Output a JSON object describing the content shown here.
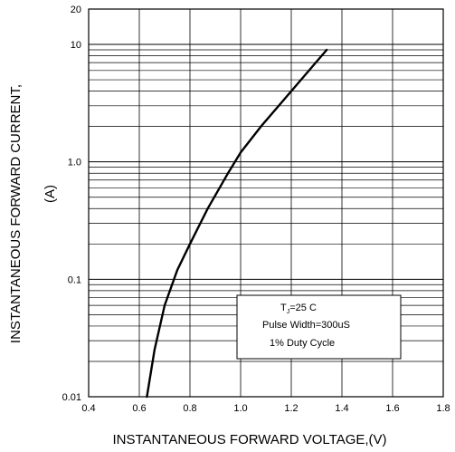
{
  "chart_data": {
    "type": "line",
    "x_axis": {
      "label": "INSTANTANEOUS FORWARD VOLTAGE,(V)",
      "min": 0.4,
      "max": 1.8,
      "ticks": [
        0.4,
        0.6,
        0.8,
        1.0,
        1.2,
        1.4,
        1.6,
        1.8
      ],
      "tick_labels": [
        "0.4",
        "0.6",
        "0.8",
        "1.0",
        "1.2",
        "1.4",
        "1.6",
        "1.8"
      ]
    },
    "y_axis": {
      "label_line1": "INSTANTANEOUS FORWARD CURRENT,",
      "label_line2": "(A)",
      "scale": "log",
      "min": 0.01,
      "max": 20,
      "ticks": [
        0.01,
        0.1,
        1.0,
        10,
        20
      ],
      "tick_labels": [
        "0.01",
        "0.1",
        "1.0",
        "10",
        "20"
      ]
    },
    "grid": true,
    "series": [
      {
        "x": [
          0.63,
          0.66,
          0.7,
          0.75,
          0.8,
          0.87,
          0.95,
          1.0,
          1.08,
          1.2,
          1.34
        ],
        "y": [
          0.01,
          0.025,
          0.06,
          0.12,
          0.2,
          0.4,
          0.8,
          1.2,
          2.0,
          4.0,
          9.0
        ]
      }
    ],
    "annotation": {
      "line1_main": "T",
      "line1_sub": "J",
      "line1_rest": "=25    C",
      "line2": "Pulse Width=300uS",
      "line3": "1% Duty Cycle"
    }
  }
}
